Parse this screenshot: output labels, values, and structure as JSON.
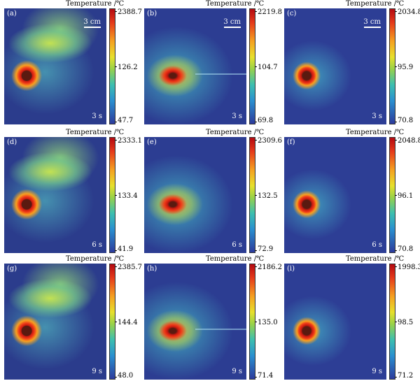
{
  "colorbar_title": "Temperature /℃",
  "scale_label": "3 cm",
  "panels": [
    {
      "letter": "(a)",
      "time": "3 s",
      "max": "2388.7",
      "mid": "126.2",
      "min": "47.7",
      "plume": "big",
      "scale": true
    },
    {
      "letter": "(b)",
      "time": "3 s",
      "max": "2219.8",
      "mid": "104.7",
      "min": "69.8",
      "plume": "halo_streak",
      "scale": true
    },
    {
      "letter": "(c)",
      "time": "3 s",
      "max": "2034.8",
      "mid": "95.9",
      "min": "70.8",
      "plume": "small",
      "scale": true
    },
    {
      "letter": "(d)",
      "time": "6 s",
      "max": "2333.1",
      "mid": "133.4",
      "min": "41.9",
      "plume": "big",
      "scale": false
    },
    {
      "letter": "(e)",
      "time": "6 s",
      "max": "2309.6",
      "mid": "132.5",
      "min": "72.9",
      "plume": "halo",
      "scale": false
    },
    {
      "letter": "(f)",
      "time": "6 s",
      "max": "2048.8",
      "mid": "96.1",
      "min": "70.8",
      "plume": "small",
      "scale": false
    },
    {
      "letter": "(g)",
      "time": "9 s",
      "max": "2385.7",
      "mid": "144.4",
      "min": "48.0",
      "plume": "big",
      "scale": false
    },
    {
      "letter": "(h)",
      "time": "9 s",
      "max": "2186.2",
      "mid": "135.0",
      "min": "71.4",
      "plume": "halo_streak",
      "scale": false
    },
    {
      "letter": "(i)",
      "time": "9 s",
      "max": "1998.3",
      "mid": "98.5",
      "min": "71.2",
      "plume": "small",
      "scale": false
    }
  ]
}
